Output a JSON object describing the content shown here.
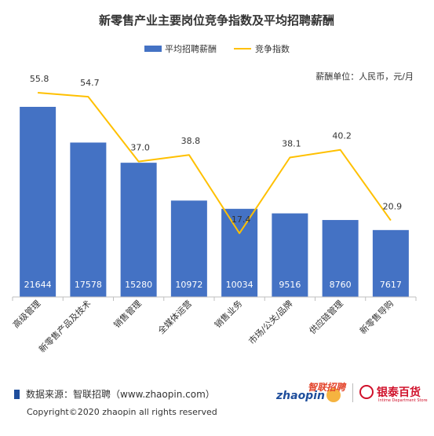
{
  "chart_data": {
    "type": "bar+line",
    "title": "新零售产业主要岗位竞争指数及平均招聘薪酬",
    "unit_note": "薪酬单位：人民币，元/月",
    "categories": [
      "高级管理",
      "新零售产品及技术",
      "销售管理",
      "全媒体运营",
      "销售业务",
      "市场/公关/品牌",
      "供应链管理",
      "新零售导购"
    ],
    "series": [
      {
        "name": "平均招聘薪酬",
        "type": "bar",
        "color": "#4472c4",
        "values": [
          21644,
          17578,
          15280,
          10972,
          10034,
          9516,
          8760,
          7617
        ]
      },
      {
        "name": "竞争指数",
        "type": "line",
        "color": "#ffc000",
        "values": [
          55.8,
          54.7,
          37.0,
          38.8,
          17.4,
          38.1,
          40.2,
          20.9
        ]
      }
    ],
    "bar_axis_range": [
      0,
      24000
    ],
    "line_axis_range": [
      0,
      70
    ],
    "grid": false,
    "legend_position": "top"
  },
  "footer": {
    "source": "数据来源：智联招聘（www.zhaopin.com）",
    "copyright": "Copyright©2020 zhaopin all rights reserved",
    "logo_zhaopin_latin": "zhaopin",
    "logo_zhaopin_cn": "智联招聘",
    "logo_yintai_cn": "银泰百货",
    "logo_yintai_en": "Intime Department Store"
  },
  "colors": {
    "bar": "#4472c4",
    "line": "#ffc000",
    "brand_blue": "#1f4e9c",
    "brand_red": "#d0102a"
  }
}
